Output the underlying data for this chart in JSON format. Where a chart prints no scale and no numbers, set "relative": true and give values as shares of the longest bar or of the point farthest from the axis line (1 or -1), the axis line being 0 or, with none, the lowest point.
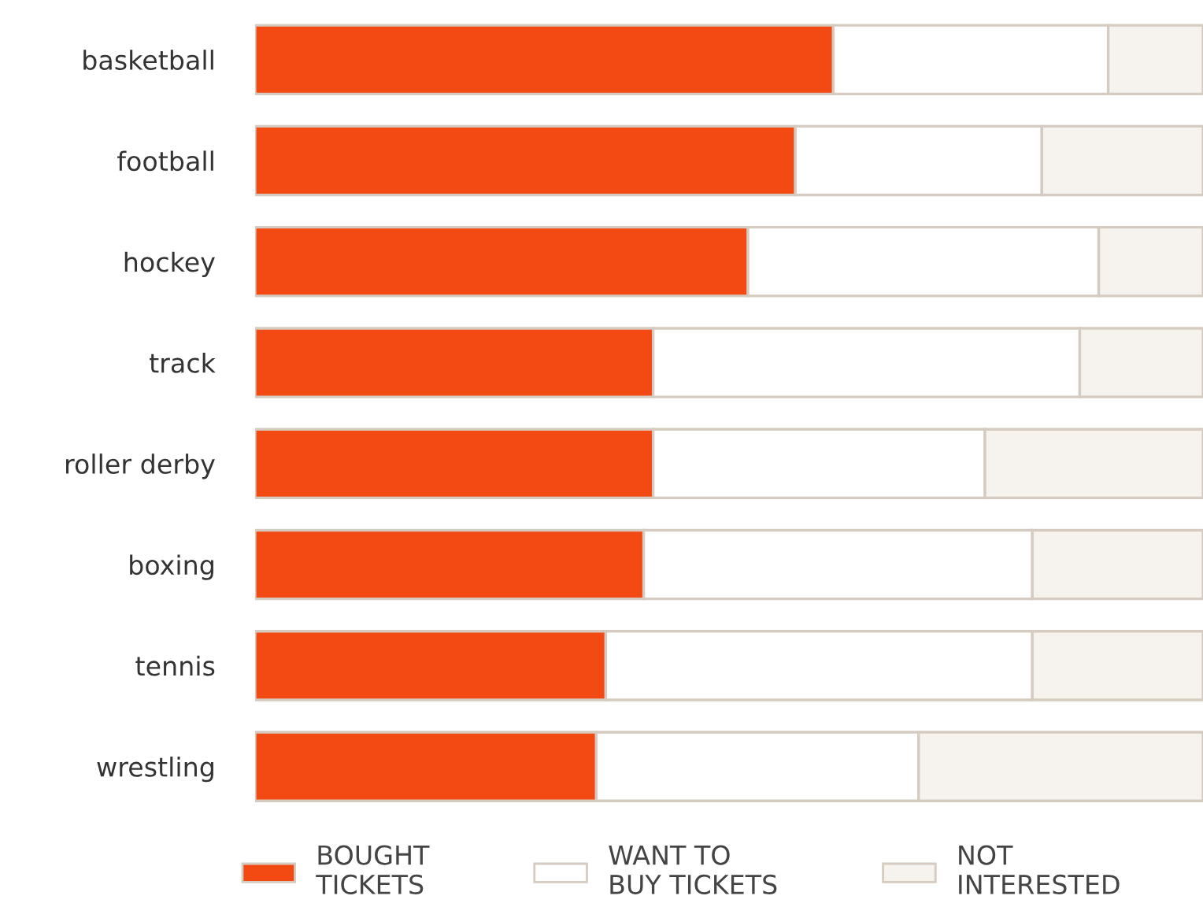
{
  "chart_data": {
    "type": "bar",
    "orientation": "horizontal",
    "stacked": true,
    "relative": true,
    "categories": [
      "basketball",
      "football",
      "hockey",
      "track",
      "roller derby",
      "boxing",
      "tennis",
      "wrestling"
    ],
    "series": [
      {
        "name": "BOUGHT\nTICKETS",
        "color": "#f24a12",
        "values": [
          0.61,
          0.57,
          0.52,
          0.42,
          0.42,
          0.41,
          0.37,
          0.36
        ]
      },
      {
        "name": "WANT TO\nBUY TICKETS",
        "color": "#ffffff",
        "values": [
          0.29,
          0.26,
          0.37,
          0.45,
          0.35,
          0.41,
          0.45,
          0.34
        ]
      },
      {
        "name": "NOT\nINTERESTED",
        "color": "#f6f2ee",
        "values": [
          0.1,
          0.17,
          0.11,
          0.13,
          0.23,
          0.18,
          0.18,
          0.3
        ]
      }
    ],
    "legend": "bottom",
    "grid": false
  }
}
